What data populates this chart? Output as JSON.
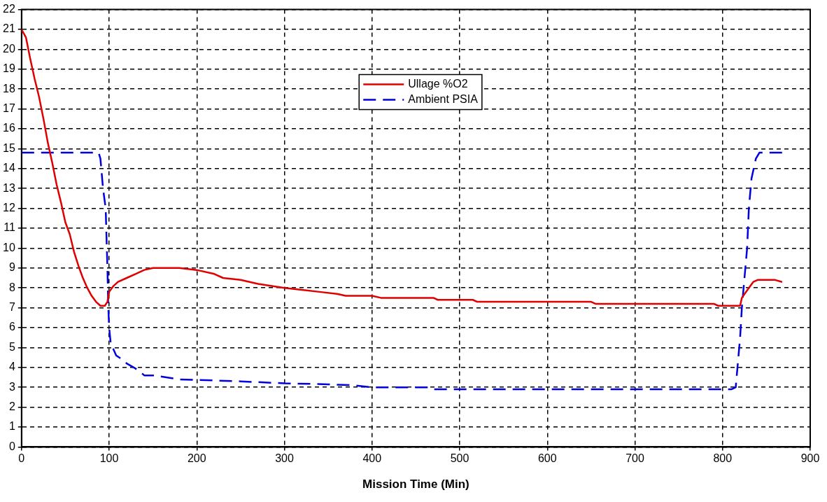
{
  "chart_data": {
    "type": "line",
    "xlabel": "Mission Time (Min)",
    "xlim": [
      0,
      900
    ],
    "xticks": [
      0,
      100,
      200,
      300,
      400,
      500,
      600,
      700,
      800,
      900
    ],
    "ylim": [
      0,
      22
    ],
    "yticks": [
      0,
      1,
      2,
      3,
      4,
      5,
      6,
      7,
      8,
      9,
      10,
      11,
      12,
      13,
      14,
      15,
      16,
      17,
      18,
      19,
      20,
      21,
      22
    ],
    "grid": true,
    "legend": "top",
    "marker": "none",
    "series": [
      {
        "name": "Ullage %O2",
        "color": "#e00000",
        "line_style": "solid",
        "x": [
          0,
          5,
          10,
          15,
          20,
          25,
          30,
          35,
          40,
          45,
          50,
          55,
          60,
          65,
          70,
          75,
          80,
          85,
          90,
          95,
          98,
          100,
          105,
          110,
          120,
          130,
          140,
          150,
          180,
          200,
          220,
          230,
          250,
          270,
          300,
          320,
          340,
          360,
          370,
          400,
          410,
          470,
          475,
          515,
          520,
          650,
          655,
          790,
          795,
          820,
          822,
          830,
          835,
          840,
          860,
          868
        ],
        "values": [
          21,
          20.6,
          19.5,
          18.5,
          17.6,
          16.5,
          15.3,
          14.3,
          13.2,
          12.3,
          11.3,
          10.7,
          9.8,
          9.1,
          8.5,
          8,
          7.6,
          7.3,
          7.1,
          7.1,
          7.3,
          7.8,
          8.1,
          8.3,
          8.5,
          8.7,
          8.9,
          9,
          9,
          8.9,
          8.7,
          8.5,
          8.4,
          8.2,
          8,
          7.9,
          7.8,
          7.7,
          7.6,
          7.6,
          7.5,
          7.5,
          7.4,
          7.4,
          7.3,
          7.3,
          7.2,
          7.2,
          7.1,
          7.1,
          7.5,
          8,
          8.3,
          8.4,
          8.4,
          8.3
        ]
      },
      {
        "name": "Ambient PSIA",
        "color": "#0000e0",
        "line_style": "dashed",
        "x": [
          0,
          88,
          90,
          93,
          96,
          98,
          99,
          100,
          102,
          105,
          108,
          115,
          120,
          128,
          135,
          140,
          150,
          180,
          250,
          300,
          350,
          380,
          400,
          465,
          470,
          810,
          815,
          818,
          820,
          822,
          825,
          828,
          830,
          833,
          838,
          842,
          868
        ],
        "values": [
          14.8,
          14.8,
          14.5,
          13,
          12,
          9,
          7,
          6,
          5.1,
          4.9,
          4.6,
          4.4,
          4.2,
          4,
          3.8,
          3.6,
          3.6,
          3.4,
          3.3,
          3.2,
          3.15,
          3.1,
          3,
          3,
          2.9,
          2.9,
          3,
          4.5,
          5.5,
          7,
          8.5,
          10,
          12,
          13.5,
          14.5,
          14.8,
          14.8
        ]
      }
    ]
  }
}
